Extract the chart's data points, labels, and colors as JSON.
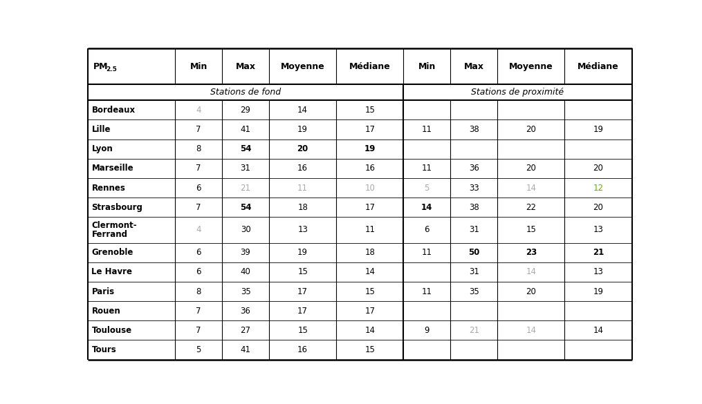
{
  "col_header": [
    "PM2.5",
    "Min",
    "Max",
    "Moyenne",
    "Médiane",
    "Min",
    "Max",
    "Moyenne",
    "Médiane"
  ],
  "subheader_left": "Stations de fond",
  "subheader_right": "Stations de proximité",
  "rows": [
    {
      "city": "Bordeaux",
      "fond": [
        "4",
        "29",
        "14",
        "15"
      ],
      "prox": [
        "",
        "",
        "",
        ""
      ],
      "fond_grey": [
        true,
        false,
        false,
        false
      ],
      "prox_grey": [
        false,
        false,
        false,
        false
      ],
      "fond_bold": [
        false,
        false,
        false,
        false
      ],
      "prox_bold": [
        false,
        false,
        false,
        false
      ],
      "prox_green": [
        false,
        false,
        false,
        false
      ],
      "two_line": false
    },
    {
      "city": "Lille",
      "fond": [
        "7",
        "41",
        "19",
        "17"
      ],
      "prox": [
        "11",
        "38",
        "20",
        "19"
      ],
      "fond_grey": [
        false,
        false,
        false,
        false
      ],
      "prox_grey": [
        false,
        false,
        false,
        false
      ],
      "fond_bold": [
        false,
        false,
        false,
        false
      ],
      "prox_bold": [
        false,
        false,
        false,
        false
      ],
      "prox_green": [
        false,
        false,
        false,
        false
      ],
      "two_line": false
    },
    {
      "city": "Lyon",
      "fond": [
        "8",
        "54",
        "20",
        "19"
      ],
      "prox": [
        "",
        "",
        "",
        ""
      ],
      "fond_grey": [
        false,
        false,
        false,
        false
      ],
      "prox_grey": [
        false,
        false,
        false,
        false
      ],
      "fond_bold": [
        false,
        true,
        true,
        true
      ],
      "prox_bold": [
        false,
        false,
        false,
        false
      ],
      "prox_green": [
        false,
        false,
        false,
        false
      ],
      "two_line": false
    },
    {
      "city": "Marseille",
      "fond": [
        "7",
        "31",
        "16",
        "16"
      ],
      "prox": [
        "11",
        "36",
        "20",
        "20"
      ],
      "fond_grey": [
        false,
        false,
        false,
        false
      ],
      "prox_grey": [
        false,
        false,
        false,
        false
      ],
      "fond_bold": [
        false,
        false,
        false,
        false
      ],
      "prox_bold": [
        false,
        false,
        false,
        false
      ],
      "prox_green": [
        false,
        false,
        false,
        false
      ],
      "two_line": false
    },
    {
      "city": "Rennes",
      "fond": [
        "6",
        "21",
        "11",
        "10"
      ],
      "prox": [
        "5",
        "33",
        "14",
        "12"
      ],
      "fond_grey": [
        false,
        true,
        true,
        true
      ],
      "prox_grey": [
        true,
        false,
        true,
        false
      ],
      "fond_bold": [
        false,
        false,
        false,
        false
      ],
      "prox_bold": [
        false,
        false,
        false,
        false
      ],
      "prox_green": [
        false,
        false,
        false,
        true
      ],
      "two_line": false
    },
    {
      "city": "Strasbourg",
      "fond": [
        "7",
        "54",
        "18",
        "17"
      ],
      "prox": [
        "14",
        "38",
        "22",
        "20"
      ],
      "fond_grey": [
        false,
        false,
        false,
        false
      ],
      "prox_grey": [
        false,
        false,
        false,
        false
      ],
      "fond_bold": [
        false,
        true,
        false,
        false
      ],
      "prox_bold": [
        true,
        false,
        false,
        false
      ],
      "prox_green": [
        false,
        false,
        false,
        false
      ],
      "two_line": false
    },
    {
      "city_line1": "Clermont-",
      "city_line2": "Ferrand",
      "city": "Clermont-\nFerrand",
      "fond": [
        "4",
        "30",
        "13",
        "11"
      ],
      "prox": [
        "6",
        "31",
        "15",
        "13"
      ],
      "fond_grey": [
        true,
        false,
        false,
        false
      ],
      "prox_grey": [
        false,
        false,
        false,
        false
      ],
      "fond_bold": [
        false,
        false,
        false,
        false
      ],
      "prox_bold": [
        false,
        false,
        false,
        false
      ],
      "prox_green": [
        false,
        false,
        false,
        false
      ],
      "two_line": true
    },
    {
      "city": "Grenoble",
      "fond": [
        "6",
        "39",
        "19",
        "18"
      ],
      "prox": [
        "11",
        "50",
        "23",
        "21"
      ],
      "fond_grey": [
        false,
        false,
        false,
        false
      ],
      "prox_grey": [
        false,
        false,
        false,
        false
      ],
      "fond_bold": [
        false,
        false,
        false,
        false
      ],
      "prox_bold": [
        false,
        true,
        true,
        true
      ],
      "prox_green": [
        false,
        false,
        false,
        false
      ],
      "two_line": false
    },
    {
      "city": "Le Havre",
      "fond": [
        "6",
        "40",
        "15",
        "14"
      ],
      "prox": [
        "",
        "31",
        "14",
        "13"
      ],
      "fond_grey": [
        false,
        false,
        false,
        false
      ],
      "prox_grey": [
        false,
        false,
        true,
        false
      ],
      "fond_bold": [
        false,
        false,
        false,
        false
      ],
      "prox_bold": [
        false,
        false,
        false,
        false
      ],
      "prox_green": [
        false,
        false,
        false,
        false
      ],
      "two_line": false
    },
    {
      "city": "Paris",
      "fond": [
        "8",
        "35",
        "17",
        "15"
      ],
      "prox": [
        "11",
        "35",
        "20",
        "19"
      ],
      "fond_grey": [
        false,
        false,
        false,
        false
      ],
      "prox_grey": [
        false,
        false,
        false,
        false
      ],
      "fond_bold": [
        false,
        false,
        false,
        false
      ],
      "prox_bold": [
        false,
        false,
        false,
        false
      ],
      "prox_green": [
        false,
        false,
        false,
        false
      ],
      "two_line": false
    },
    {
      "city": "Rouen",
      "fond": [
        "7",
        "36",
        "17",
        "17"
      ],
      "prox": [
        "",
        "",
        "",
        ""
      ],
      "fond_grey": [
        false,
        false,
        false,
        false
      ],
      "prox_grey": [
        false,
        false,
        false,
        false
      ],
      "fond_bold": [
        false,
        false,
        false,
        false
      ],
      "prox_bold": [
        false,
        false,
        false,
        false
      ],
      "prox_green": [
        false,
        false,
        false,
        false
      ],
      "two_line": false
    },
    {
      "city": "Toulouse",
      "fond": [
        "7",
        "27",
        "15",
        "14"
      ],
      "prox": [
        "9",
        "21",
        "14",
        "14"
      ],
      "fond_grey": [
        false,
        false,
        false,
        false
      ],
      "prox_grey": [
        false,
        true,
        true,
        false
      ],
      "fond_bold": [
        false,
        false,
        false,
        false
      ],
      "prox_bold": [
        false,
        false,
        false,
        false
      ],
      "prox_green": [
        false,
        false,
        false,
        false
      ],
      "two_line": false
    },
    {
      "city": "Tours",
      "fond": [
        "5",
        "41",
        "16",
        "15"
      ],
      "prox": [
        "",
        "",
        "",
        ""
      ],
      "fond_grey": [
        false,
        false,
        false,
        false
      ],
      "prox_grey": [
        false,
        false,
        false,
        false
      ],
      "fond_bold": [
        false,
        false,
        false,
        false
      ],
      "prox_bold": [
        false,
        false,
        false,
        false
      ],
      "prox_green": [
        false,
        false,
        false,
        false
      ],
      "two_line": false
    }
  ],
  "col_widths_ratio": [
    1.3,
    0.7,
    0.7,
    1.0,
    1.0,
    0.7,
    0.7,
    1.0,
    1.0
  ],
  "grey_color": "#aaaaaa",
  "green_color": "#6aaa00",
  "normal_color": "#000000"
}
